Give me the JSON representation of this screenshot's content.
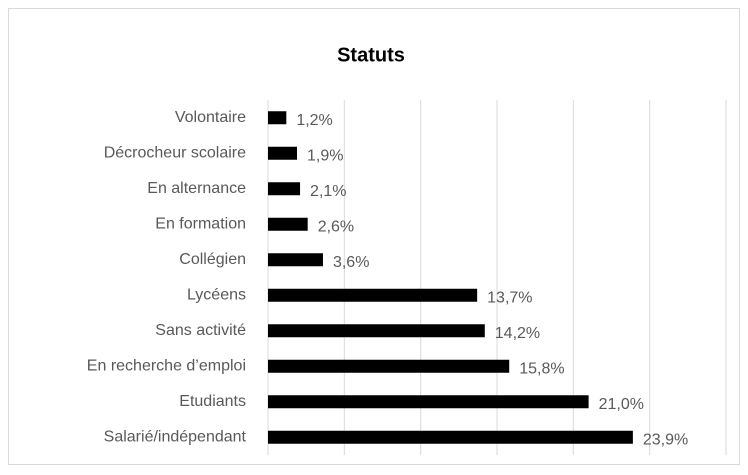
{
  "chart_data": {
    "type": "barh",
    "title": "Statuts",
    "categories": [
      "Volontaire",
      "Décrocheur scolaire",
      "En alternance",
      "En formation",
      "Collégien",
      "Lycéens",
      "Sans activité",
      "En recherche d’emploi",
      "Etudiants",
      "Salarié/indépendant"
    ],
    "values": [
      1.2,
      1.9,
      2.1,
      2.6,
      3.6,
      13.7,
      14.2,
      15.8,
      21.0,
      23.9
    ],
    "value_labels": [
      "1,2%",
      "1,9%",
      "2,1%",
      "2,6%",
      "3,6%",
      "13,7%",
      "14,2%",
      "15,8%",
      "21,0%",
      "23,9%"
    ],
    "color": "#000000",
    "xlim": [
      0,
      30
    ],
    "xticks": [
      0,
      5,
      10,
      15,
      20,
      25,
      30
    ],
    "grid": true
  }
}
